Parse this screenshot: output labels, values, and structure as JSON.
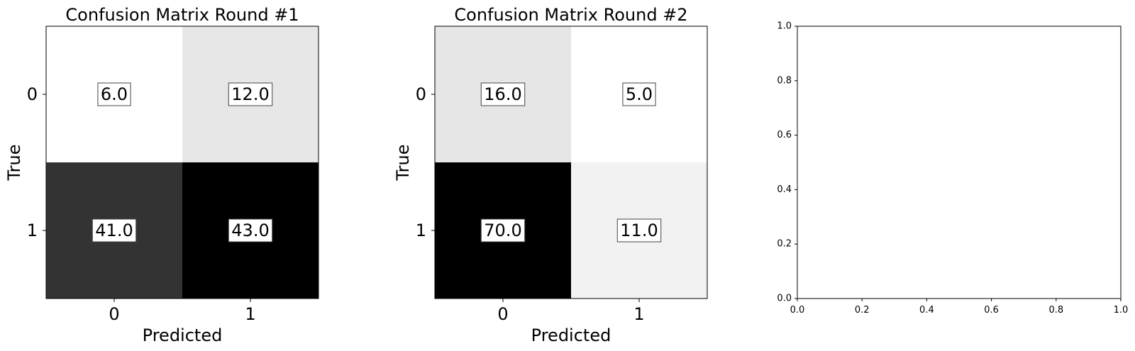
{
  "chart_data": [
    {
      "type": "heatmap",
      "title": "Confusion Matrix Round #1",
      "xlabel": "Predicted",
      "ylabel": "True",
      "x_categories": [
        "0",
        "1"
      ],
      "y_categories": [
        "0",
        "1"
      ],
      "values": [
        [
          6.0,
          12.0
        ],
        [
          41.0,
          43.0
        ]
      ],
      "value_labels": [
        [
          "6.0",
          "12.0"
        ],
        [
          "41.0",
          "43.0"
        ]
      ],
      "colormap": "greys"
    },
    {
      "type": "heatmap",
      "title": "Confusion Matrix Round #2",
      "xlabel": "Predicted",
      "ylabel": "True",
      "x_categories": [
        "0",
        "1"
      ],
      "y_categories": [
        "0",
        "1"
      ],
      "values": [
        [
          16.0,
          5.0
        ],
        [
          70.0,
          11.0
        ]
      ],
      "value_labels": [
        [
          "16.0",
          "5.0"
        ],
        [
          "70.0",
          "11.0"
        ]
      ],
      "colormap": "greys"
    },
    {
      "type": "scatter",
      "title": "",
      "xlabel": "",
      "ylabel": "",
      "xlim": [
        0.0,
        1.0
      ],
      "ylim": [
        0.0,
        1.0
      ],
      "x_ticks": [
        "0.0",
        "0.2",
        "0.4",
        "0.6",
        "0.8",
        "1.0"
      ],
      "y_ticks": [
        "0.0",
        "0.2",
        "0.4",
        "0.6",
        "0.8",
        "1.0"
      ],
      "series": []
    }
  ]
}
